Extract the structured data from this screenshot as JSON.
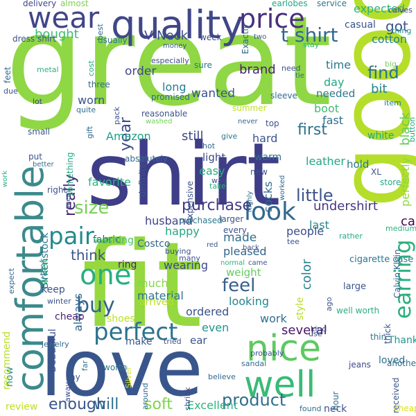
{
  "words": [
    {
      "text": "great",
      "color": "#8fd744"
    },
    {
      "text": "shirt",
      "color": "#3e3d87"
    },
    {
      "text": "fit",
      "color": "#95d840"
    },
    {
      "text": "love",
      "color": "#39568c"
    },
    {
      "text": "good",
      "color": "#b5de2b"
    },
    {
      "text": "quality",
      "color": "#404788"
    },
    {
      "text": "comfortable",
      "color": "#3b8a8c"
    },
    {
      "text": "nice",
      "color": "#5ec962"
    },
    {
      "text": "well",
      "color": "#3aba76"
    },
    {
      "text": "wear",
      "color": "#404588"
    },
    {
      "text": "price",
      "color": "#46307e"
    },
    {
      "text": "one",
      "color": "#29af7f"
    },
    {
      "text": "perfect",
      "color": "#2c728e"
    },
    {
      "text": "product",
      "color": "#2e6e8e"
    },
    {
      "text": "look",
      "color": "#31688e"
    },
    {
      "text": "pair",
      "color": "#238a8d"
    },
    {
      "text": "earring",
      "color": "#2ab07f"
    },
    {
      "text": "buy",
      "color": "#33638d"
    },
    {
      "text": "feel",
      "color": "#355f8d"
    },
    {
      "text": "t shirt",
      "color": "#31688e"
    },
    {
      "text": "size",
      "color": "#75d054"
    },
    {
      "text": "will",
      "color": "#2c728e"
    },
    {
      "text": "soft",
      "color": "#7fd34e"
    },
    {
      "text": "enough",
      "color": "#39568c"
    },
    {
      "text": "really",
      "color": "#482878"
    },
    {
      "text": "year",
      "color": "#3e4a89"
    },
    {
      "text": "find",
      "color": "#2d718e"
    },
    {
      "text": "little",
      "color": "#3b528b"
    },
    {
      "text": "purchase",
      "color": "#443983"
    },
    {
      "text": "undershirt",
      "color": "#453781"
    },
    {
      "text": "expected",
      "color": "#2db27d"
    },
    {
      "text": "got",
      "color": "#3b528b"
    },
    {
      "text": "cotton",
      "color": "#26828e"
    },
    {
      "text": "first",
      "color": "#2d718e"
    },
    {
      "text": "bought",
      "color": "#3dbc74"
    },
    {
      "text": "V Neck",
      "color": "#3e4989"
    },
    {
      "text": "wanted",
      "color": "#3a548c"
    },
    {
      "text": "order",
      "color": "#3f4889"
    },
    {
      "text": "long",
      "color": "#287d8e"
    },
    {
      "text": "worn",
      "color": "#3b528b"
    },
    {
      "text": "brand",
      "color": "#481f70"
    },
    {
      "text": "time",
      "color": "#2a788e"
    },
    {
      "text": "day",
      "color": "#22a884"
    },
    {
      "text": "bit",
      "color": "#25858e"
    },
    {
      "text": "needed",
      "color": "#2a778e"
    },
    {
      "text": "boot",
      "color": "#3dbc74"
    },
    {
      "text": "fast",
      "color": "#2e6e8e"
    },
    {
      "text": "black",
      "color": "#65cb5e"
    },
    {
      "text": "still",
      "color": "#3f4788"
    },
    {
      "text": "hard",
      "color": "#39568c"
    },
    {
      "text": "Amazon",
      "color": "#1fa088"
    },
    {
      "text": "light",
      "color": "#404688"
    },
    {
      "text": "easy",
      "color": "#27ad81"
    },
    {
      "text": "warm",
      "color": "#2e6e8e"
    },
    {
      "text": "leather",
      "color": "#22a884"
    },
    {
      "text": "socks",
      "color": "#31688e"
    },
    {
      "text": "hold",
      "color": "#2a768e"
    },
    {
      "text": "perfectly",
      "color": "#8fd744"
    },
    {
      "text": "favorite",
      "color": "#2db27d"
    },
    {
      "text": "husband",
      "color": "#414287"
    },
    {
      "text": "last",
      "color": "#25848e"
    },
    {
      "text": "case",
      "color": "#440154"
    },
    {
      "text": "happy",
      "color": "#22a884"
    },
    {
      "text": "made",
      "color": "#2e6f8e"
    },
    {
      "text": "people",
      "color": "#3e4a89"
    },
    {
      "text": "think",
      "color": "#3b528b"
    },
    {
      "text": "want",
      "color": "#3aba76"
    },
    {
      "text": "wearing",
      "color": "#3f4788"
    },
    {
      "text": "pleased",
      "color": "#33638d"
    },
    {
      "text": "weight",
      "color": "#63cb5f"
    },
    {
      "text": "color",
      "color": "#25838e"
    },
    {
      "text": "much",
      "color": "#86d549"
    },
    {
      "text": "material",
      "color": "#2c738e"
    },
    {
      "text": "looking",
      "color": "#24868e"
    },
    {
      "text": "always",
      "color": "#31688e"
    },
    {
      "text": "ordered",
      "color": "#3b528b"
    },
    {
      "text": "even",
      "color": "#1f948c"
    },
    {
      "text": "work",
      "color": "#2d718e"
    },
    {
      "text": "several",
      "color": "#481467"
    },
    {
      "text": "ear",
      "color": "#3b528b"
    },
    {
      "text": "make",
      "color": "#39568c"
    },
    {
      "text": "Excellent",
      "color": "#2db27d"
    },
    {
      "text": "style",
      "color": "#b8de29"
    },
    {
      "text": "Birkenstock",
      "color": "#2a788e"
    },
    {
      "text": "Beautiful",
      "color": "#3b528b"
    },
    {
      "text": "fabric",
      "color": "#33638d"
    },
    {
      "text": "Costco",
      "color": "#31688e"
    },
    {
      "text": "arrived",
      "color": "#b5de2b"
    },
    {
      "text": "shoes",
      "color": "#bddf26"
    },
    {
      "text": "loved",
      "color": "#2e6e8e"
    },
    {
      "text": "Thank",
      "color": "#1f968b"
    },
    {
      "text": "keep",
      "color": "#3b528b"
    },
    {
      "text": "ring",
      "color": "#482576"
    },
    {
      "text": "washing",
      "color": "#4ac16d"
    },
    {
      "text": "cheap",
      "color": "#482475"
    },
    {
      "text": "now",
      "color": "#20928c"
    },
    {
      "text": "recommend",
      "color": "#b8de29"
    },
    {
      "text": "review",
      "color": "#bddf26"
    },
    {
      "text": "large",
      "color": "#3b528b"
    },
    {
      "text": "thin",
      "color": "#2a788e"
    },
    {
      "text": "neck",
      "color": "#3b528b"
    },
    {
      "text": "another",
      "color": "#2e6f8e"
    },
    {
      "text": "jeans",
      "color": "#404688"
    },
    {
      "text": "thick",
      "color": "#3b528b"
    },
    {
      "text": "Calvin Klein",
      "color": "#33638d"
    },
    {
      "text": "cigarette case",
      "color": "#2a788e"
    },
    {
      "text": "well worth",
      "color": "#2ab07f"
    },
    {
      "text": "received",
      "color": "#39568c"
    },
    {
      "text": "cheaper",
      "color": "#d8e219"
    },
    {
      "text": "hour",
      "color": "#2e6f8e"
    },
    {
      "text": "found",
      "color": "#2e6e8e"
    },
    {
      "text": "believe",
      "color": "#31688e"
    },
    {
      "text": "shrink",
      "color": "#404588"
    },
    {
      "text": "around",
      "color": "#31688e"
    },
    {
      "text": "Silver",
      "color": "#d2e21b"
    },
    {
      "text": "worth",
      "color": "#2a778e"
    },
    {
      "text": "say",
      "color": "#3b528b"
    },
    {
      "text": "away",
      "color": "#3b528b"
    },
    {
      "text": "far",
      "color": "#2a788e"
    },
    {
      "text": "jewelry",
      "color": "#31688e"
    },
    {
      "text": "winter",
      "color": "#3b528b"
    },
    {
      "text": "expect",
      "color": "#31688e"
    },
    {
      "text": "probably",
      "color": "#3b528b"
    },
    {
      "text": "sandal",
      "color": "#31688e"
    },
    {
      "text": "earlobes",
      "color": "#22a884"
    },
    {
      "text": "service",
      "color": "#2a788e"
    },
    {
      "text": "delivery",
      "color": "#3e4989"
    },
    {
      "text": "almost",
      "color": "#7ad151"
    },
    {
      "text": "calves",
      "color": "#404688"
    },
    {
      "text": "casual",
      "color": "#3b528b"
    },
    {
      "text": "thing",
      "color": "#20928c"
    },
    {
      "text": "feet",
      "color": "#2e6e8e"
    },
    {
      "text": "dress shirt",
      "color": "#3b528b"
    },
    {
      "text": "best",
      "color": "#31688e"
    },
    {
      "text": "usually",
      "color": "#2a788e"
    },
    {
      "text": "week",
      "color": "#3e4989"
    },
    {
      "text": "Exactly",
      "color": "#31688e"
    },
    {
      "text": "two",
      "color": "#3b528b"
    },
    {
      "text": "money",
      "color": "#3b528b"
    },
    {
      "text": "stay",
      "color": "#2db27d"
    },
    {
      "text": "metal",
      "color": "#2db27d"
    },
    {
      "text": "cost",
      "color": "#22a884"
    },
    {
      "text": "especially",
      "color": "#3e4989"
    },
    {
      "text": "sure",
      "color": "#2a788e"
    },
    {
      "text": "need",
      "color": "#3b528b"
    },
    {
      "text": "big",
      "color": "#73d056"
    },
    {
      "text": "tie",
      "color": "#31688e"
    },
    {
      "text": "due",
      "color": "#3b528b"
    },
    {
      "text": "lot",
      "color": "#404688"
    },
    {
      "text": "three",
      "color": "#31688e"
    },
    {
      "text": "quite",
      "color": "#2e6e8e"
    },
    {
      "text": "pack",
      "color": "#3b528b"
    },
    {
      "text": "promised",
      "color": "#31688e"
    },
    {
      "text": "sleeve",
      "color": "#2e6e8e"
    },
    {
      "text": "item",
      "color": "#2a788e"
    },
    {
      "text": "button",
      "color": "#22a884"
    },
    {
      "text": "reasonable",
      "color": "#3b528b"
    },
    {
      "text": "washed",
      "color": "#73d056"
    },
    {
      "text": "summer",
      "color": "#bddf26"
    },
    {
      "text": "top",
      "color": "#3b528b"
    },
    {
      "text": "never",
      "color": "#31688e"
    },
    {
      "text": "white",
      "color": "#22a884"
    },
    {
      "text": "small",
      "color": "#3b528b"
    },
    {
      "text": "gift",
      "color": "#31688e"
    },
    {
      "text": "give",
      "color": "#2a788e"
    },
    {
      "text": "hot",
      "color": "#31688e"
    },
    {
      "text": "put",
      "color": "#3b528b"
    },
    {
      "text": "better",
      "color": "#2e6e8e"
    },
    {
      "text": "work",
      "color": "#2db27d"
    },
    {
      "text": "something",
      "color": "#22a884"
    },
    {
      "text": "definitely",
      "color": "#3b528b"
    },
    {
      "text": "absolutely",
      "color": "#31688e"
    },
    {
      "text": "new",
      "color": "#3b528b"
    },
    {
      "text": "XL",
      "color": "#3b528b"
    },
    {
      "text": "store",
      "color": "#22a884"
    },
    {
      "text": "way",
      "color": "#3b528b"
    },
    {
      "text": "take",
      "color": "#2db27d"
    },
    {
      "text": "right",
      "color": "#3b528b"
    },
    {
      "text": "seem",
      "color": "#3b528b"
    },
    {
      "text": "highly",
      "color": "#31688e"
    },
    {
      "text": "worked",
      "color": "#31688e"
    },
    {
      "text": "expensive",
      "color": "#3b528b"
    },
    {
      "text": "purchased",
      "color": "#2a788e"
    },
    {
      "text": "larger",
      "color": "#3b528b"
    },
    {
      "text": "every",
      "color": "#3b528b"
    },
    {
      "text": "back",
      "color": "#3b528b"
    },
    {
      "text": "medium",
      "color": "#2db27d"
    },
    {
      "text": "rather",
      "color": "#22a884"
    },
    {
      "text": "tee",
      "color": "#3b528b"
    },
    {
      "text": "buying",
      "color": "#3b528b"
    },
    {
      "text": "many",
      "color": "#3b528b"
    },
    {
      "text": "red",
      "color": "#3b528b"
    },
    {
      "text": "normal",
      "color": "#2db27d"
    },
    {
      "text": "came",
      "color": "#3b528b"
    },
    {
      "text": "kind",
      "color": "#3b528b"
    },
    {
      "text": "use",
      "color": "#3b528b"
    },
    {
      "text": "tried",
      "color": "#3b528b"
    },
    {
      "text": "ago",
      "color": "#3b528b"
    },
    {
      "text": "shipping",
      "color": "#22a884"
    }
  ]
}
